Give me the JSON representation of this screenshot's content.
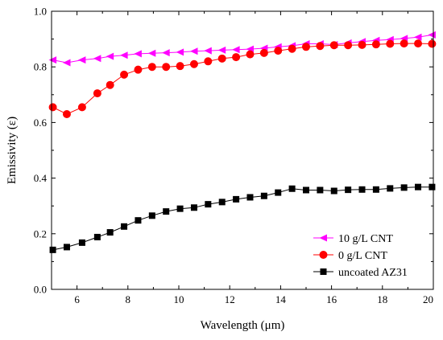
{
  "chart_data": {
    "type": "line",
    "title": "",
    "xlabel": "Wavelength (μm)",
    "ylabel": "Emissivity (ε)",
    "xlim": [
      5,
      20
    ],
    "ylim": [
      0.0,
      1.0
    ],
    "xticks": [
      6,
      8,
      10,
      12,
      14,
      16,
      18,
      20
    ],
    "yticks": [
      0.0,
      0.2,
      0.4,
      0.6,
      0.8,
      1.0
    ],
    "ytick_labels": [
      "0.0",
      "0.2",
      "0.4",
      "0.6",
      "0.8",
      "1.0"
    ],
    "xtick_labels": [
      "6",
      "8",
      "10",
      "12",
      "14",
      "16",
      "18",
      "20"
    ],
    "grid": false,
    "legend_position": "bottom-right",
    "series": [
      {
        "name": "10 g/L CNT",
        "marker": "triangle-left",
        "color": "#ff00ff",
        "x": [
          5.05,
          5.6,
          6.2,
          6.8,
          7.3,
          7.85,
          8.4,
          8.95,
          9.5,
          10.05,
          10.6,
          11.15,
          11.7,
          12.25,
          12.8,
          13.35,
          13.9,
          14.45,
          15.0,
          15.55,
          16.1,
          16.65,
          17.2,
          17.75,
          18.3,
          18.85,
          19.4,
          19.95
        ],
        "y": [
          0.825,
          0.815,
          0.825,
          0.83,
          0.838,
          0.842,
          0.847,
          0.849,
          0.851,
          0.853,
          0.856,
          0.858,
          0.86,
          0.862,
          0.864,
          0.867,
          0.872,
          0.876,
          0.883,
          0.883,
          0.88,
          0.886,
          0.891,
          0.895,
          0.898,
          0.902,
          0.907,
          0.915
        ]
      },
      {
        "name": "0 g/L CNT",
        "marker": "circle",
        "color": "#ff0000",
        "x": [
          5.05,
          5.6,
          6.2,
          6.8,
          7.3,
          7.85,
          8.4,
          8.95,
          9.5,
          10.05,
          10.6,
          11.15,
          11.7,
          12.25,
          12.8,
          13.35,
          13.9,
          14.45,
          15.0,
          15.55,
          16.1,
          16.65,
          17.2,
          17.75,
          18.3,
          18.85,
          19.4,
          19.95
        ],
        "y": [
          0.655,
          0.63,
          0.655,
          0.705,
          0.735,
          0.772,
          0.79,
          0.8,
          0.8,
          0.803,
          0.81,
          0.82,
          0.83,
          0.835,
          0.845,
          0.85,
          0.858,
          0.865,
          0.872,
          0.875,
          0.878,
          0.878,
          0.879,
          0.881,
          0.883,
          0.884,
          0.884,
          0.883
        ]
      },
      {
        "name": "uncoated AZ31",
        "marker": "square",
        "color": "#000000",
        "x": [
          5.05,
          5.6,
          6.2,
          6.8,
          7.3,
          7.85,
          8.4,
          8.95,
          9.5,
          10.05,
          10.6,
          11.15,
          11.7,
          12.25,
          12.8,
          13.35,
          13.9,
          14.45,
          15.0,
          15.55,
          16.1,
          16.65,
          17.2,
          17.75,
          18.3,
          18.85,
          19.4,
          19.95
        ],
        "y": [
          0.142,
          0.152,
          0.168,
          0.188,
          0.205,
          0.226,
          0.248,
          0.265,
          0.28,
          0.29,
          0.294,
          0.306,
          0.314,
          0.324,
          0.331,
          0.336,
          0.348,
          0.362,
          0.357,
          0.357,
          0.354,
          0.358,
          0.359,
          0.359,
          0.363,
          0.366,
          0.368,
          0.368
        ]
      }
    ]
  }
}
